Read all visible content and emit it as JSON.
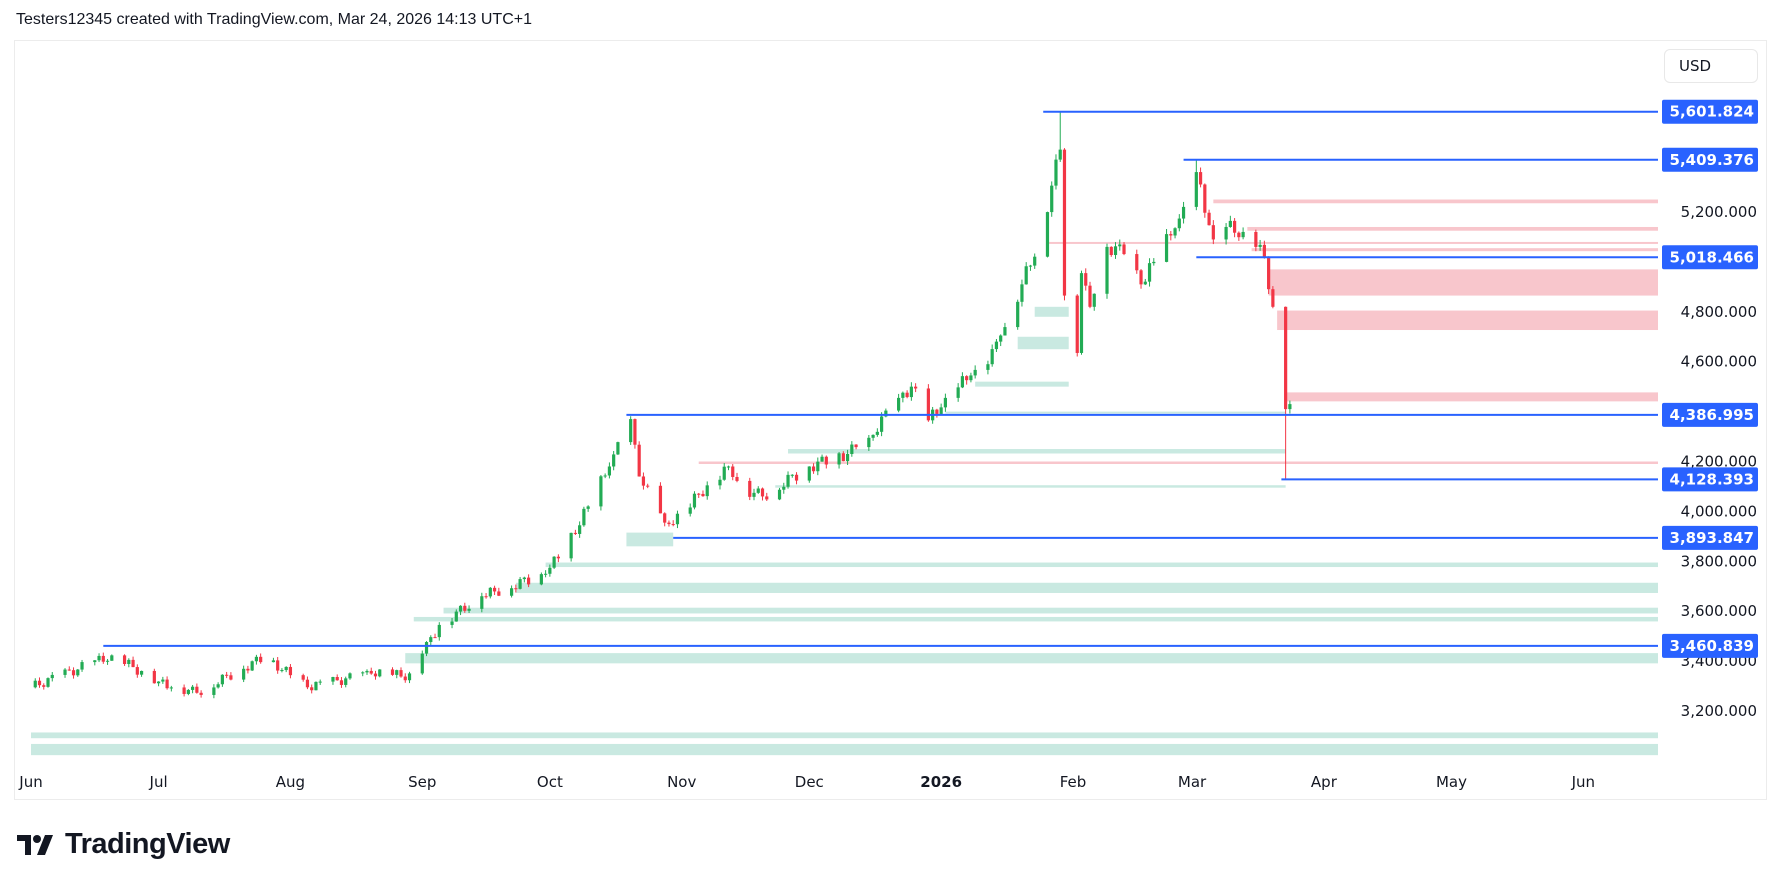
{
  "caption": "Testers12345 created with TradingView.com, Mar 24, 2026 14:13 UTC+1",
  "currency_button": "USD",
  "logo_text": "TradingView",
  "colors": {
    "up": "#22ab54",
    "down": "#f23645",
    "level": "#2962ff",
    "supply": "#f8c6cc",
    "demand": "#c9e9e1"
  },
  "chart_data": {
    "type": "candlestick",
    "x_unit": "days since Jun 1, 2025",
    "xlim": [
      0,
      386
    ],
    "ylim": [
      2980,
      5700
    ],
    "y_ticks": [
      {
        "value": 5200,
        "label": "5,200.000"
      },
      {
        "value": 4800,
        "label": "4,800.000"
      },
      {
        "value": 4600,
        "label": "4,600.000"
      },
      {
        "value": 4200,
        "label": "4,200.000"
      },
      {
        "value": 4000,
        "label": "4,000.000"
      },
      {
        "value": 3800,
        "label": "3,800.000"
      },
      {
        "value": 3600,
        "label": "3,600.000"
      },
      {
        "value": 3400,
        "label": "3,400.000"
      },
      {
        "value": 3200,
        "label": "3,200.000"
      }
    ],
    "x_ticks": [
      {
        "day": 0,
        "label": "Jun"
      },
      {
        "day": 30,
        "label": "Jul"
      },
      {
        "day": 61,
        "label": "Aug"
      },
      {
        "day": 92,
        "label": "Sep"
      },
      {
        "day": 122,
        "label": "Oct"
      },
      {
        "day": 153,
        "label": "Nov"
      },
      {
        "day": 183,
        "label": "Dec"
      },
      {
        "day": 214,
        "label": "2026",
        "bold": true
      },
      {
        "day": 245,
        "label": "Feb"
      },
      {
        "day": 273,
        "label": "Mar"
      },
      {
        "day": 304,
        "label": "Apr"
      },
      {
        "day": 334,
        "label": "May"
      },
      {
        "day": 365,
        "label": "Jun"
      }
    ],
    "close_keyframes": [
      [
        0,
        3295
      ],
      [
        19,
        3423
      ],
      [
        30,
        3318
      ],
      [
        39,
        3273
      ],
      [
        55,
        3418
      ],
      [
        65,
        3295
      ],
      [
        80,
        3350
      ],
      [
        90,
        3340
      ],
      [
        92,
        3430
      ],
      [
        96,
        3545
      ],
      [
        106,
        3660
      ],
      [
        121,
        3750
      ],
      [
        126,
        3865
      ],
      [
        131,
        4020
      ],
      [
        136,
        4180
      ],
      [
        141,
        4370
      ],
      [
        143,
        4140
      ],
      [
        149,
        3955
      ],
      [
        153,
        3980
      ],
      [
        157,
        4070
      ],
      [
        164,
        4180
      ],
      [
        168,
        4090
      ],
      [
        172,
        4060
      ],
      [
        183,
        4180
      ],
      [
        192,
        4230
      ],
      [
        197,
        4295
      ],
      [
        204,
        4455
      ],
      [
        207,
        4500
      ],
      [
        211,
        4365
      ],
      [
        215,
        4455
      ],
      [
        221,
        4545
      ],
      [
        225,
        4590
      ],
      [
        228,
        4705
      ],
      [
        233,
        4910
      ],
      [
        238,
        5135
      ],
      [
        241,
        5410
      ],
      [
        242,
        5450
      ],
      [
        243,
        4865
      ],
      [
        246,
        4635
      ],
      [
        247,
        4955
      ],
      [
        249,
        4820
      ],
      [
        252,
        5045
      ],
      [
        256,
        5070
      ],
      [
        261,
        4910
      ],
      [
        264,
        5000
      ],
      [
        269,
        5135
      ],
      [
        273,
        5250
      ],
      [
        274,
        5360
      ],
      [
        278,
        5090
      ],
      [
        281,
        5140
      ],
      [
        285,
        5120
      ],
      [
        288,
        5060
      ],
      [
        290,
        5020
      ],
      [
        292,
        4820
      ],
      [
        293,
        4635
      ],
      [
        294,
        4480
      ],
      [
        295,
        4410
      ],
      [
        296,
        4430
      ]
    ],
    "extreme_wicks": [
      {
        "day": 242,
        "high": 5601.824
      },
      {
        "day": 274,
        "high": 5409.376
      },
      {
        "day": 295,
        "low": 4128.393
      }
    ],
    "levels": [
      {
        "price": 5601.824,
        "label": "5,601.824",
        "from_day": 238
      },
      {
        "price": 5409.376,
        "label": "5,409.376",
        "from_day": 271
      },
      {
        "price": 5018.466,
        "label": "5,018.466",
        "from_day": 274
      },
      {
        "price": 4386.995,
        "label": "4,386.995",
        "from_day": 140
      },
      {
        "price": 4128.393,
        "label": "4,128.393",
        "from_day": 294
      },
      {
        "price": 3893.847,
        "label": "3,893.847",
        "from_day": 151
      },
      {
        "price": 3460.839,
        "label": "3,460.839",
        "from_day": 17
      }
    ],
    "supply_zones": [
      [
        278,
        5250,
        5235
      ],
      [
        286,
        5140,
        5125
      ],
      [
        287,
        5055,
        5043
      ],
      [
        291,
        4970,
        4865
      ],
      [
        293,
        4805,
        4727
      ],
      [
        295,
        4477,
        4441
      ],
      [
        239,
        5080,
        5072
      ],
      [
        157,
        4200,
        4190
      ]
    ],
    "demand_zones": [
      [
        121,
        3795,
        3777
      ],
      [
        114,
        3714,
        3673
      ],
      [
        97,
        3614,
        3591
      ],
      [
        90,
        3577,
        3559
      ],
      [
        88,
        3432,
        3391
      ],
      [
        0,
        3114,
        3091
      ],
      [
        0,
        3068,
        3023
      ],
      [
        178,
        4250,
        4232,
        295
      ],
      [
        175,
        4105,
        4095,
        295
      ],
      [
        215,
        4400,
        4392,
        295
      ],
      [
        140,
        3915,
        3860,
        151
      ],
      [
        222,
        4520,
        4500,
        244
      ],
      [
        232,
        4700,
        4650,
        244
      ],
      [
        236,
        4820,
        4780,
        244
      ]
    ]
  }
}
